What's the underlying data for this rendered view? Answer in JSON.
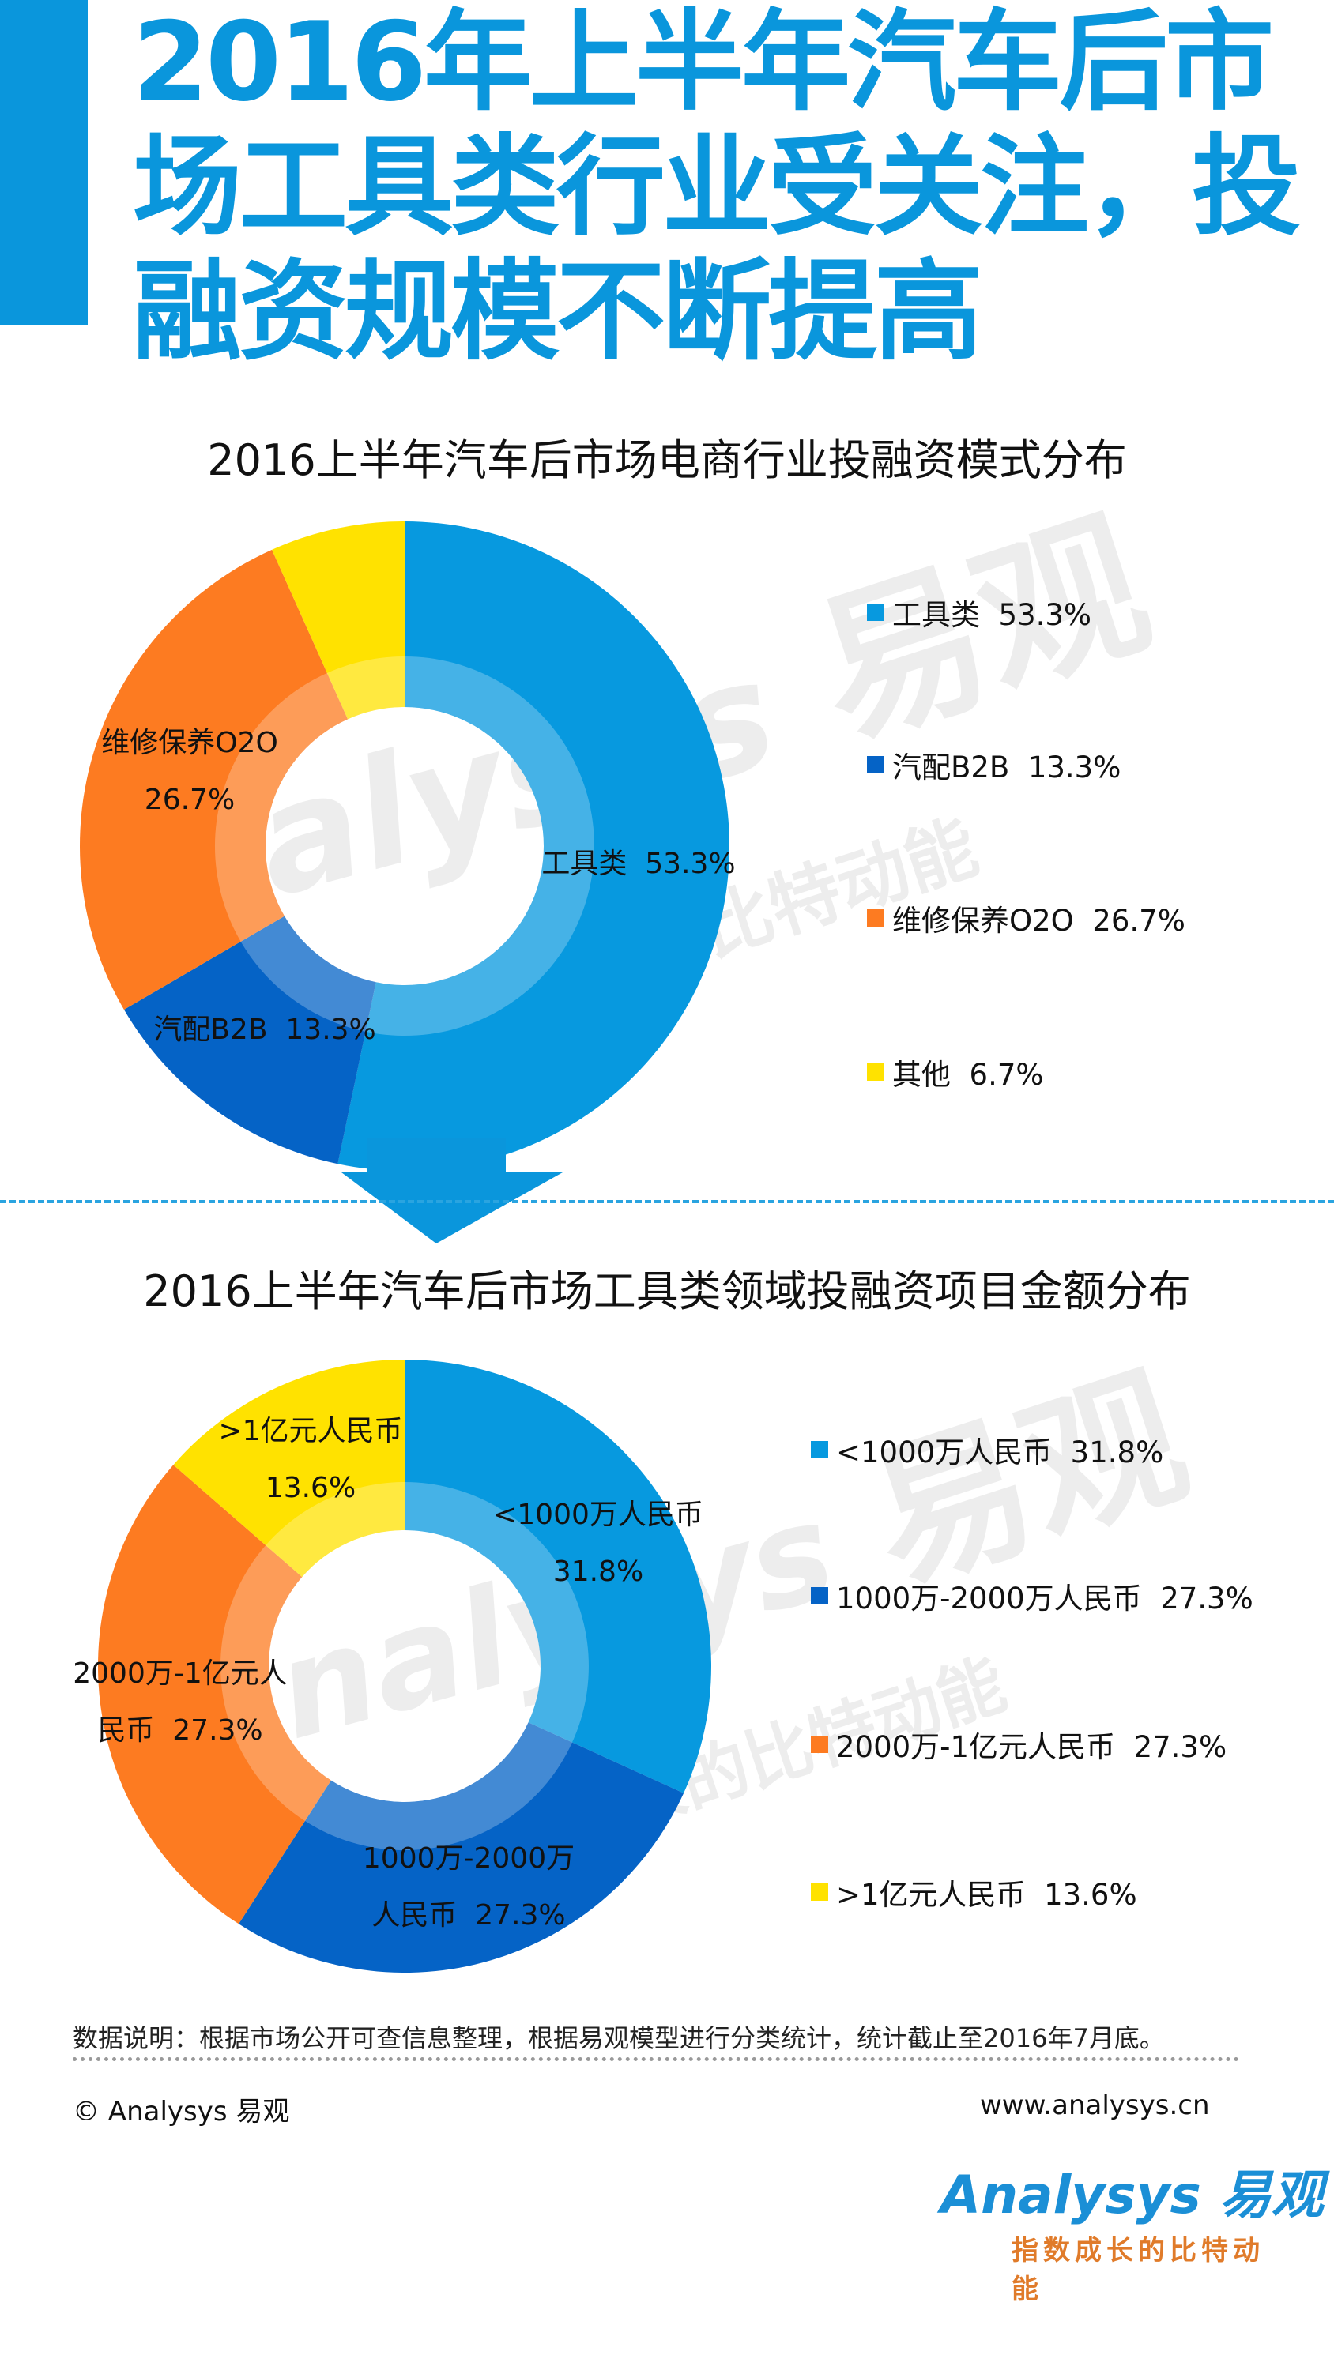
{
  "header": {
    "title_lines": [
      "2016年上半年汽车后市",
      "场工具类行业受关注，投",
      "融资规模不断提高"
    ],
    "accent_color": "#0a96dc"
  },
  "chart_data": [
    {
      "type": "pie",
      "donut": true,
      "title": "2016上半年汽车后市场电商行业投融资模式分布",
      "categories": [
        "工具类",
        "汽配B2B",
        "维修保养O2O",
        "其他"
      ],
      "values": [
        53.3,
        13.3,
        26.7,
        6.7
      ],
      "unit": "%",
      "colors": [
        "#0799df",
        "#0563c6",
        "#fd7b21",
        "#ffe200"
      ],
      "data_labels": [
        [
          "工具类  53.3%"
        ],
        [
          "汽配B2B  13.3%"
        ],
        [
          "维修保养O2O",
          "26.7%"
        ],
        []
      ],
      "legend": [
        "工具类  53.3%",
        "汽配B2B  13.3%",
        "维修保养O2O  26.7%",
        "其他  6.7%"
      ],
      "legend_position": "right"
    },
    {
      "type": "pie",
      "donut": true,
      "title": "2016上半年汽车后市场工具类领域投融资项目金额分布",
      "categories": [
        "<1000万人民币",
        "1000万-2000万人民币",
        "2000万-1亿元人民币",
        ">1亿元人民币"
      ],
      "values": [
        31.8,
        27.3,
        27.3,
        13.6
      ],
      "unit": "%",
      "colors": [
        "#0799df",
        "#0563c6",
        "#fd7b21",
        "#ffe200"
      ],
      "data_labels": [
        [
          "<1000万人民币",
          "31.8%"
        ],
        [
          "1000万-2000万",
          "人民币  27.3%"
        ],
        [
          "2000万-1亿元人",
          "民币  27.3%"
        ],
        [
          ">1亿元人民币",
          "13.6%"
        ]
      ],
      "legend": [
        "<1000万人民币  31.8%",
        "1000万-2000万人民币  27.3%",
        "2000万-1亿元人民币  27.3%",
        ">1亿元人民币  13.6%"
      ],
      "legend_position": "right"
    }
  ],
  "footer": {
    "note": "数据说明：根据市场公开可查信息整理，根据易观模型进行分类统计，统计截止至2016年7月底。",
    "copyright": "© Analysys 易观",
    "website": "www.analysys.cn",
    "logo_text": "Analysys 易观",
    "logo_slogan": "指数成长的比特动能"
  },
  "watermark": {
    "brand": "nalysys",
    "cn": "易观",
    "slogan": "指数成长的比特动能"
  }
}
